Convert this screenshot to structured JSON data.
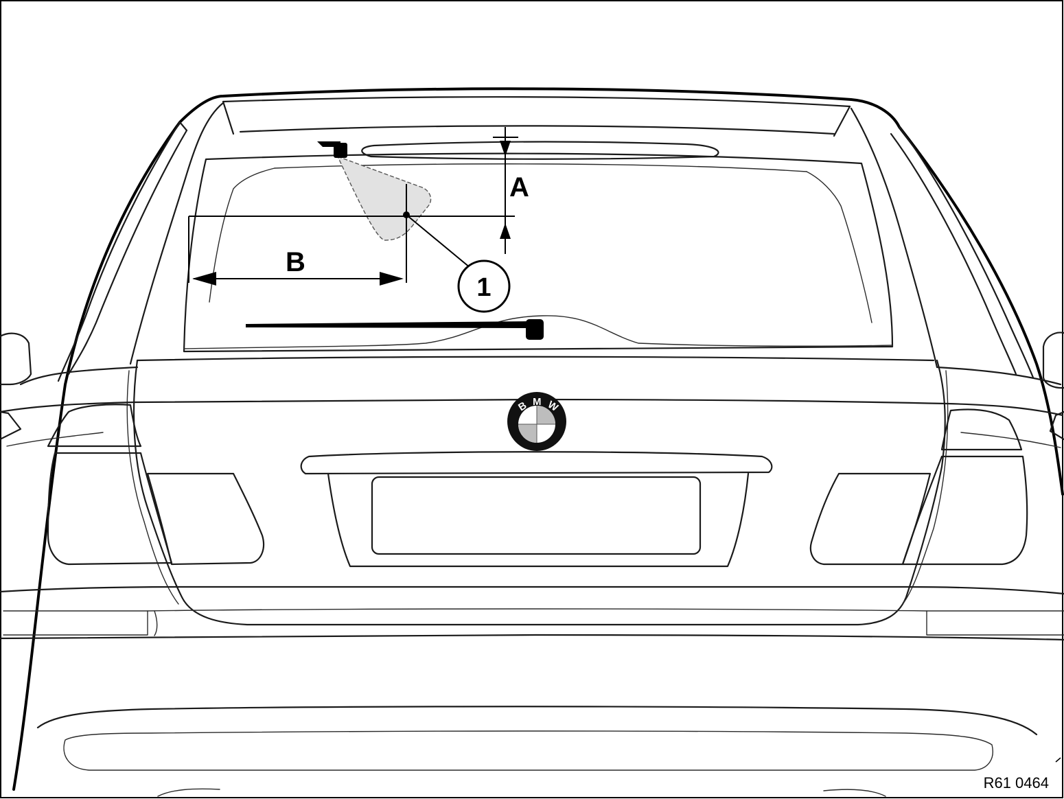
{
  "diagram": {
    "label_a": "A",
    "label_b": "B",
    "callout_1": "1",
    "reference_code": "R61 0464",
    "logo_letters": [
      "B",
      "M",
      "W"
    ]
  },
  "colors": {
    "line": "#1a1a1a",
    "spray_area_fill": "#e2e2e2",
    "logo_quadrant_gray": "#bdbdbd",
    "logo_ring": "#111111"
  }
}
